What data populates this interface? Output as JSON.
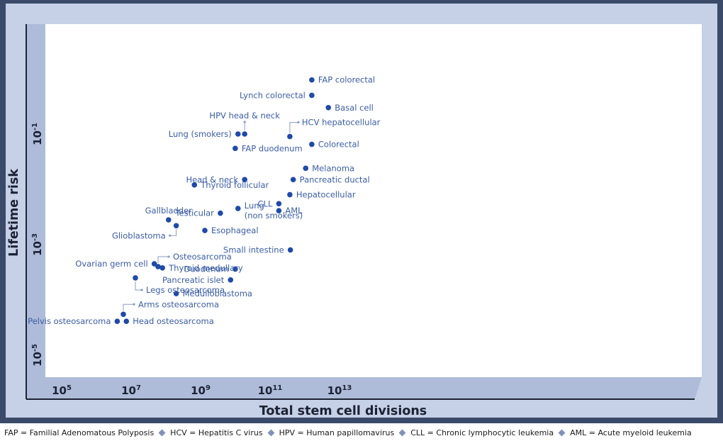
{
  "chart_data": {
    "type": "scatter",
    "xlabel": "Total stem cell divisions",
    "ylabel": "Lifetime risk",
    "x_scale": "log",
    "y_scale": "log",
    "xlim": [
      100000.0,
      10000000000000.0
    ],
    "ylim": [
      1e-05,
      1
    ],
    "x_ticks": [
      {
        "value": 100000.0,
        "base": "10",
        "exp": "5"
      },
      {
        "value": 10000000.0,
        "base": "10",
        "exp": "7"
      },
      {
        "value": 1000000000.0,
        "base": "10",
        "exp": "9"
      },
      {
        "value": 100000000000.0,
        "base": "10",
        "exp": "11"
      },
      {
        "value": 10000000000000.0,
        "base": "10",
        "exp": "13"
      }
    ],
    "y_ticks": [
      {
        "value": 0.1,
        "base": "10",
        "exp": "-1"
      },
      {
        "value": 0.001,
        "base": "10",
        "exp": "-3"
      },
      {
        "value": 1e-05,
        "base": "10",
        "exp": "-5"
      }
    ],
    "grid": false,
    "points": [
      {
        "name": "FAP colorectal",
        "x": 1200000000000.0,
        "y": 0.95
      },
      {
        "name": "Lynch colorectal",
        "x": 1200000000000.0,
        "y": 0.5
      },
      {
        "name": "Basal cell",
        "x": 3600000000000.0,
        "y": 0.3
      },
      {
        "name": "HPV head & neck",
        "x": 14000000000.0,
        "y": 0.1
      },
      {
        "name": "Lung (smokers)",
        "x": 9000000000.0,
        "y": 0.1
      },
      {
        "name": "HCV hepatocellular",
        "x": 280000000000.0,
        "y": 0.09
      },
      {
        "name": "Colorectal",
        "x": 1200000000000.0,
        "y": 0.065
      },
      {
        "name": "FAP duodenum",
        "x": 7500000000.0,
        "y": 0.055
      },
      {
        "name": "Melanoma",
        "x": 800000000000.0,
        "y": 0.024
      },
      {
        "name": "Head & neck",
        "x": 14000000000.0,
        "y": 0.015
      },
      {
        "name": "Pancreatic ductal",
        "x": 350000000000.0,
        "y": 0.015
      },
      {
        "name": "Thyroid follicular",
        "x": 500000000.0,
        "y": 0.012
      },
      {
        "name": "Hepatocellular",
        "x": 280000000000.0,
        "y": 0.008
      },
      {
        "name": "CLL",
        "x": 135000000000.0,
        "y": 0.0055
      },
      {
        "name": "AML",
        "x": 135000000000.0,
        "y": 0.0041
      },
      {
        "name": "Lung (non smokers)",
        "x": 9000000000.0,
        "y": 0.0045
      },
      {
        "name": "Testicular",
        "x": 2800000000.0,
        "y": 0.0037
      },
      {
        "name": "Gallbladder",
        "x": 90000000.0,
        "y": 0.0028
      },
      {
        "name": "Glioblastoma",
        "x": 150000000.0,
        "y": 0.0022
      },
      {
        "name": "Esophageal",
        "x": 1000000000.0,
        "y": 0.0018
      },
      {
        "name": "Small intestine",
        "x": 290000000000.0,
        "y": 0.0008
      },
      {
        "name": "Osteosarcoma",
        "x": 45000000.0,
        "y": 0.0004
      },
      {
        "name": "Ovarian germ cell",
        "x": 35000000.0,
        "y": 0.00045
      },
      {
        "name": "Thyroid medullary",
        "x": 60000000.0,
        "y": 0.00038
      },
      {
        "name": "Duodenum",
        "x": 7500000000.0,
        "y": 0.00036
      },
      {
        "name": "Pancreatic islet",
        "x": 5500000000.0,
        "y": 0.00023
      },
      {
        "name": "Legs osteosarcoma",
        "x": 10000000.0,
        "y": 0.00025
      },
      {
        "name": "Medulloblastoma",
        "x": 150000000.0,
        "y": 0.00013
      },
      {
        "name": "Arms osteosarcoma",
        "x": 4500000.0,
        "y": 5.5e-05
      },
      {
        "name": "Pelvis osteosarcoma",
        "x": 3000000.0,
        "y": 4.1e-05
      },
      {
        "name": "Head osteosarcoma",
        "x": 5500000.0,
        "y": 4.1e-05
      }
    ]
  },
  "labels": [
    {
      "point": 0,
      "lines": [
        "FAP colorectal"
      ],
      "anchor": "start"
    },
    {
      "point": 1,
      "lines": [
        "Lynch colorectal"
      ],
      "anchor": "end"
    },
    {
      "point": 2,
      "lines": [
        "Basal cell"
      ],
      "anchor": "start"
    },
    {
      "point": 3,
      "lines": [
        "HPV head & neck"
      ],
      "anchor": "middle",
      "leader": "above"
    },
    {
      "point": 4,
      "lines": [
        "Lung (smokers)"
      ],
      "anchor": "end"
    },
    {
      "point": 5,
      "lines": [
        "HCV hepatocellular"
      ],
      "anchor": "start",
      "leader": "above"
    },
    {
      "point": 6,
      "lines": [
        "Colorectal"
      ],
      "anchor": "start"
    },
    {
      "point": 7,
      "lines": [
        "FAP duodenum"
      ],
      "anchor": "start"
    },
    {
      "point": 8,
      "lines": [
        "Melanoma"
      ],
      "anchor": "start"
    },
    {
      "point": 9,
      "lines": [
        "Head & neck"
      ],
      "anchor": "end"
    },
    {
      "point": 10,
      "lines": [
        "Pancreatic ductal"
      ],
      "anchor": "start"
    },
    {
      "point": 11,
      "lines": [
        "Thyroid follicular"
      ],
      "anchor": "start"
    },
    {
      "point": 12,
      "lines": [
        "Hepatocellular"
      ],
      "anchor": "start"
    },
    {
      "point": 13,
      "lines": [
        "CLL"
      ],
      "anchor": "end"
    },
    {
      "point": 14,
      "lines": [
        "AML"
      ],
      "anchor": "start"
    },
    {
      "point": 15,
      "lines": [
        "Lung",
        "(non smokers)"
      ],
      "anchor": "start"
    },
    {
      "point": 16,
      "lines": [
        "Testicular"
      ],
      "anchor": "end"
    },
    {
      "point": 17,
      "lines": [
        "Gallbladder"
      ],
      "anchor": "middle",
      "position": "above"
    },
    {
      "point": 18,
      "lines": [
        "Glioblastoma"
      ],
      "anchor": "end",
      "leader": "below-left"
    },
    {
      "point": 19,
      "lines": [
        "Esophageal"
      ],
      "anchor": "start"
    },
    {
      "point": 20,
      "lines": [
        "Small intestine"
      ],
      "anchor": "end"
    },
    {
      "point": 21,
      "lines": [
        "Osteosarcoma"
      ],
      "anchor": "start",
      "leader": "above-right"
    },
    {
      "point": 22,
      "lines": [
        "Ovarian germ cell"
      ],
      "anchor": "end"
    },
    {
      "point": 23,
      "lines": [
        "Thyroid medullary"
      ],
      "anchor": "start"
    },
    {
      "point": 24,
      "lines": [
        "Duodenum"
      ],
      "anchor": "end"
    },
    {
      "point": 25,
      "lines": [
        "Pancreatic islet"
      ],
      "anchor": "end"
    },
    {
      "point": 26,
      "lines": [
        "Legs osteosarcoma"
      ],
      "anchor": "start",
      "leader": "below-right"
    },
    {
      "point": 27,
      "lines": [
        "Medulloblastoma"
      ],
      "anchor": "start"
    },
    {
      "point": 28,
      "lines": [
        "Arms osteosarcoma"
      ],
      "anchor": "start",
      "leader": "above-right"
    },
    {
      "point": 29,
      "lines": [
        "Pelvis osteosarcoma"
      ],
      "anchor": "end"
    },
    {
      "point": 30,
      "lines": [
        "Head osteosarcoma"
      ],
      "anchor": "start"
    }
  ],
  "colors": {
    "frame": "#3b4a68",
    "panel": "#c6d0e6",
    "plot_bg": "#ffffff",
    "point": "#1f4aa8",
    "label": "#3a5da5",
    "axis_text": "#1b2233",
    "leader": "#8a9cc2"
  },
  "footnote": [
    "FAP = Familial Adenomatous Polyposis",
    "HCV = Hepatitis C virus",
    "HPV = Human papillomavirus",
    "CLL = Chronic lymphocytic leukemia",
    "AML = Acute myeloid leukemia"
  ]
}
